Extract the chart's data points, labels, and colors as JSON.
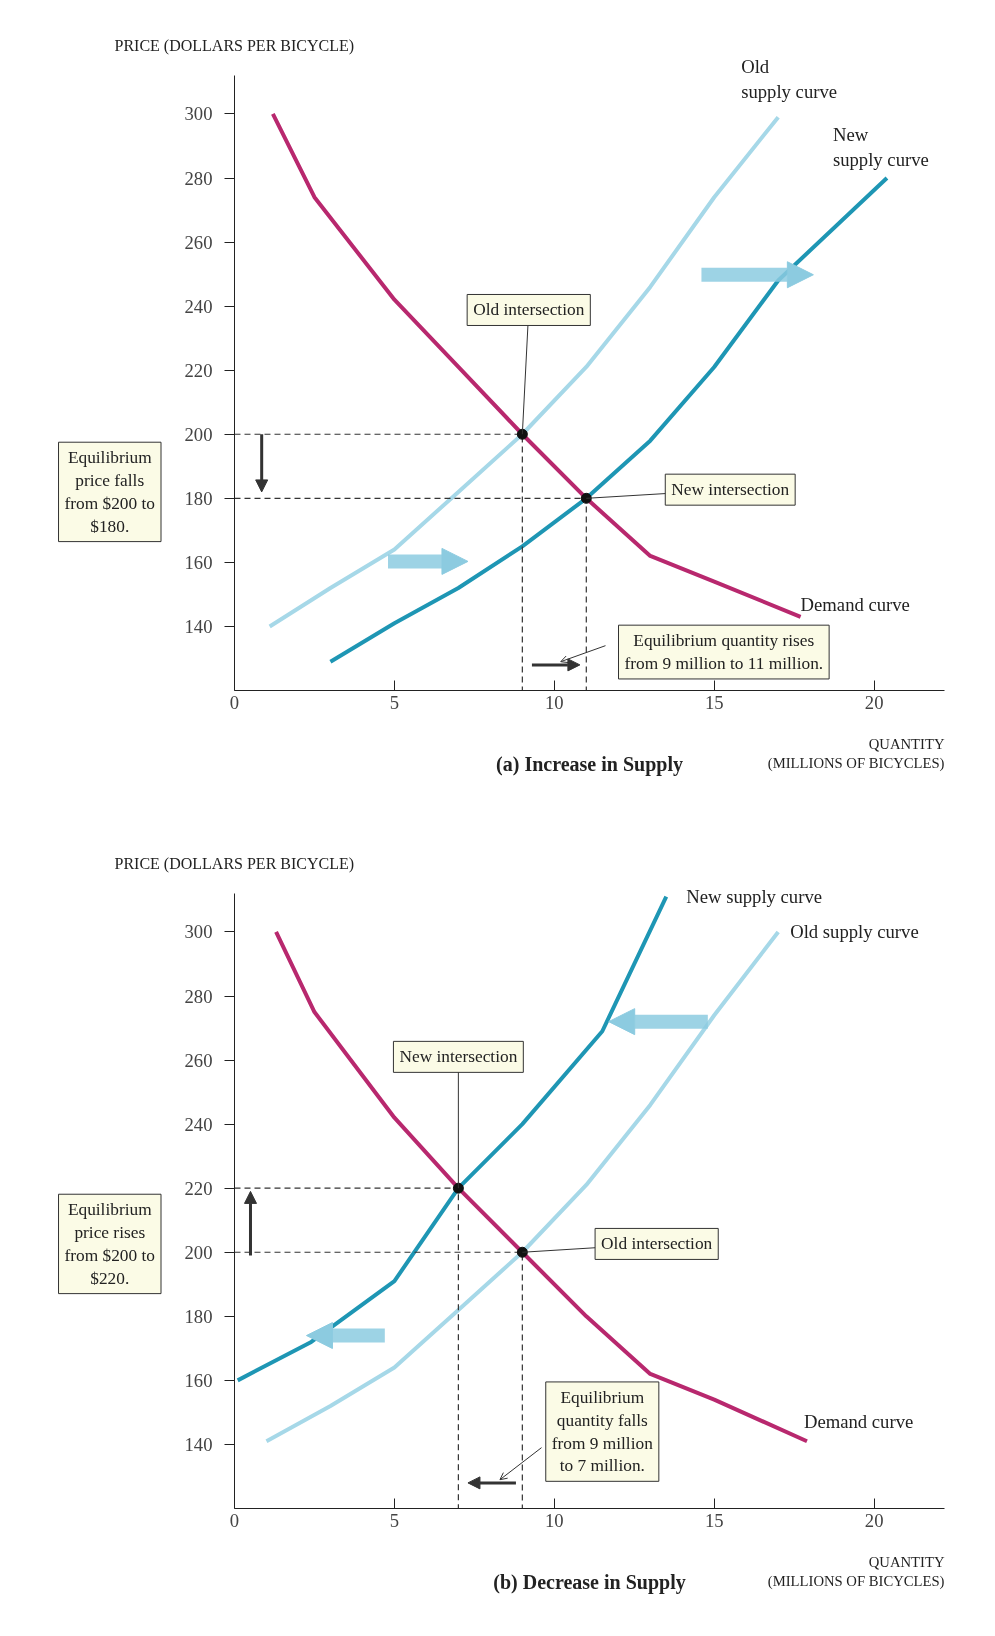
{
  "chart_data": [
    {
      "type": "line",
      "title": "(a) Increase in Supply",
      "ylabel": "PRICE (DOLLARS PER BICYCLE)",
      "xlabel": "QUANTITY (MILLIONS OF BICYCLES)",
      "xlim": [
        0,
        22.2
      ],
      "ylim": [
        120,
        312
      ],
      "xticks": [
        0,
        5,
        10,
        15,
        20
      ],
      "yticks": [
        140,
        160,
        180,
        200,
        220,
        240,
        260,
        280,
        300
      ],
      "series": [
        {
          "name": "Demand curve",
          "color": "#b8286e",
          "x": [
            1.2,
            2.5,
            5,
            7,
            9,
            11,
            13,
            15,
            17.7
          ],
          "values": [
            300,
            274,
            242,
            221,
            200,
            180,
            162,
            154,
            143
          ]
        },
        {
          "name": "Old supply curve",
          "color": "#a6d8e8",
          "x": [
            1.1,
            3,
            5,
            7,
            9,
            11,
            13,
            15,
            17
          ],
          "values": [
            140,
            152,
            164,
            182,
            200,
            221,
            246,
            274,
            299
          ]
        },
        {
          "name": "New supply curve",
          "color": "#1e96b4",
          "x": [
            3,
            5,
            7,
            9,
            11,
            13,
            15,
            17,
            20.4
          ],
          "values": [
            129,
            141,
            152,
            165,
            180,
            198,
            221,
            248,
            280
          ]
        },
        {
          "type": "line",
          "color": "#333333",
          "line_style": "dashed",
          "x": [
            0,
            9,
            9
          ],
          "values": [
            200,
            200,
            120
          ]
        },
        {
          "type": "line",
          "color": "#333333",
          "line_style": "dashed",
          "x": [
            0,
            11,
            11
          ],
          "values": [
            180,
            180,
            120
          ]
        },
        {
          "type": "scatter",
          "color": "#111111",
          "marker": "circle",
          "x": [
            9,
            11
          ],
          "values": [
            200,
            180
          ]
        }
      ],
      "annotations": [
        {
          "text": "Old intersection",
          "x": 9,
          "y": 200
        },
        {
          "text": "New intersection",
          "x": 11,
          "y": 180
        },
        "Equilibrium price falls from $200 to $180.",
        "Equilibrium quantity rises from 9 million to 11 million."
      ]
    },
    {
      "type": "line",
      "title": "(b) Decrease in Supply",
      "ylabel": "PRICE (DOLLARS PER BICYCLE)",
      "xlabel": "QUANTITY (MILLIONS OF BICYCLES)",
      "xlim": [
        0,
        22.2
      ],
      "ylim": [
        120,
        312
      ],
      "xticks": [
        0,
        5,
        10,
        15,
        20
      ],
      "yticks": [
        140,
        160,
        180,
        200,
        220,
        240,
        260,
        280,
        300
      ],
      "series": [
        {
          "name": "Demand curve",
          "color": "#b8286e",
          "x": [
            1.3,
            2.5,
            5,
            7,
            9,
            11,
            13,
            15,
            17.9
          ],
          "values": [
            300,
            275,
            242,
            220,
            200,
            180,
            162,
            154,
            141
          ]
        },
        {
          "name": "New supply curve",
          "color": "#1e96b4",
          "x": [
            0.1,
            2.4,
            5,
            7,
            9,
            11.5,
            13.5
          ],
          "values": [
            160,
            172,
            191,
            220,
            240,
            269,
            311
          ]
        },
        {
          "name": "Old supply curve",
          "color": "#a6d8e8",
          "x": [
            1,
            3,
            5,
            7,
            9,
            11,
            13,
            15,
            17
          ],
          "values": [
            141,
            152,
            164,
            182,
            200,
            221,
            246,
            274,
            300
          ]
        },
        {
          "type": "line",
          "color": "#333333",
          "line_style": "dashed",
          "x": [
            0,
            7,
            7
          ],
          "values": [
            220,
            220,
            120
          ]
        },
        {
          "type": "line",
          "color": "#333333",
          "line_style": "dashed",
          "x": [
            0,
            9,
            9
          ],
          "values": [
            200,
            200,
            120
          ]
        },
        {
          "type": "scatter",
          "color": "#111111",
          "marker": "circle",
          "x": [
            7,
            9
          ],
          "values": [
            220,
            200
          ]
        }
      ],
      "annotations": [
        {
          "text": "New intersection",
          "x": 7,
          "y": 220
        },
        {
          "text": "Old intersection",
          "x": 9,
          "y": 200
        },
        "Equilibrium price rises from $200 to $220.",
        "Equilibrium quantity falls from 9 million to 7 million."
      ]
    }
  ]
}
